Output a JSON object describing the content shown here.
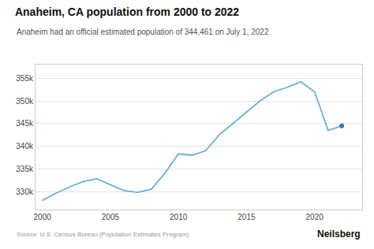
{
  "chart_data": {
    "type": "line",
    "title": "Anaheim, CA population from 2000 to 2022",
    "subtitle": "Anaheim had an official estimated population of 344,461 on July 1, 2022",
    "annotations": [
      "Source: U.S. Census Bureau (Population Estimates Program)",
      "Neilsberg"
    ],
    "x": [
      2000,
      2001,
      2002,
      2003,
      2004,
      2005,
      2006,
      2007,
      2008,
      2009,
      2010,
      2011,
      2012,
      2013,
      2014,
      2015,
      2016,
      2017,
      2018,
      2019,
      2020,
      2021,
      2022
    ],
    "series": [
      {
        "type": "line",
        "color": "#6baed6",
        "values": [
          328014,
          329600,
          331000,
          332200,
          332800,
          331500,
          330200,
          329800,
          330500,
          334000,
          338300,
          338000,
          339000,
          342500,
          345000,
          347500,
          350000,
          352000,
          353000,
          354200,
          352000,
          343500,
          344461
        ]
      },
      {
        "type": "scatter",
        "marker": "circle",
        "color": "#4272a4",
        "x": [
          2022
        ],
        "values": [
          344461
        ]
      }
    ],
    "xlim": [
      1999.5,
      2023.5
    ],
    "xticks": [
      2000,
      2005,
      2010,
      2015,
      2020
    ],
    "ylim": [
      326000,
      358000
    ],
    "yticks": [
      {
        "value": 330000,
        "label": "330k"
      },
      {
        "value": 335000,
        "label": "335k"
      },
      {
        "value": 340000,
        "label": "340k"
      },
      {
        "value": 345000,
        "label": "345k"
      },
      {
        "value": 350000,
        "label": "350k"
      },
      {
        "value": 355000,
        "label": "355k"
      }
    ],
    "grid": true
  }
}
